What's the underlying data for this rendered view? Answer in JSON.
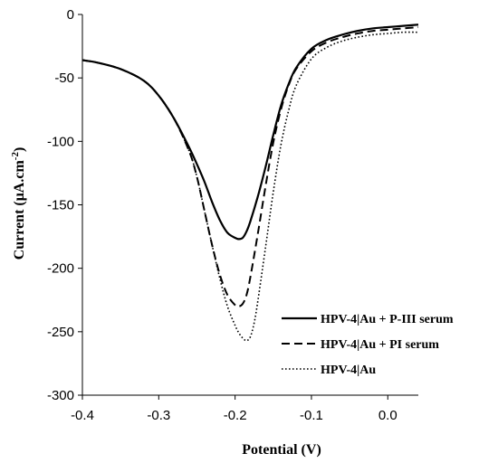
{
  "chart_data": {
    "type": "line",
    "xlabel": "Potential (V)",
    "ylabel_main": "Current (μA.cm",
    "ylabel_sup": "-2",
    "ylabel_close": ")",
    "xlim": [
      -0.4,
      0.04
    ],
    "ylim": [
      -300,
      0
    ],
    "x_ticks": [
      -0.4,
      -0.3,
      -0.2,
      -0.1,
      0.0
    ],
    "x_tick_labels": [
      "-0.4",
      "-0.3",
      "-0.2",
      "-0.1",
      "0.0"
    ],
    "y_ticks": [
      0,
      -50,
      -100,
      -150,
      -200,
      -250,
      -300
    ],
    "y_tick_labels": [
      "0",
      "-50",
      "-100",
      "-150",
      "-200",
      "-250",
      "-300"
    ],
    "grid": false,
    "legend_position": "bottom-right",
    "series": [
      {
        "name": "HPV-4|Au + P-III serum",
        "style": "solid",
        "x": [
          -0.4,
          -0.38,
          -0.35,
          -0.32,
          -0.3,
          -0.28,
          -0.26,
          -0.25,
          -0.24,
          -0.23,
          -0.22,
          -0.21,
          -0.2,
          -0.195,
          -0.19,
          -0.185,
          -0.18,
          -0.17,
          -0.16,
          -0.15,
          -0.14,
          -0.13,
          -0.12,
          -0.1,
          -0.08,
          -0.06,
          -0.04,
          -0.02,
          0.0,
          0.02,
          0.04
        ],
        "y": [
          -36,
          -38,
          -43,
          -52,
          -64,
          -82,
          -105,
          -118,
          -132,
          -148,
          -162,
          -172,
          -176,
          -177,
          -176,
          -171,
          -163,
          -143,
          -120,
          -95,
          -72,
          -55,
          -42,
          -27,
          -20,
          -16,
          -13,
          -11,
          -10,
          -9,
          -8
        ]
      },
      {
        "name": "HPV-4|Au + PI serum",
        "style": "dashed",
        "x": [
          -0.4,
          -0.38,
          -0.35,
          -0.32,
          -0.3,
          -0.28,
          -0.26,
          -0.25,
          -0.24,
          -0.23,
          -0.22,
          -0.21,
          -0.2,
          -0.195,
          -0.19,
          -0.185,
          -0.18,
          -0.17,
          -0.16,
          -0.15,
          -0.14,
          -0.13,
          -0.12,
          -0.1,
          -0.08,
          -0.06,
          -0.04,
          -0.02,
          0.0,
          0.02,
          0.04
        ],
        "y": [
          -36,
          -38,
          -43,
          -52,
          -64,
          -82,
          -108,
          -128,
          -155,
          -182,
          -205,
          -221,
          -229,
          -230,
          -228,
          -221,
          -207,
          -172,
          -135,
          -101,
          -75,
          -56,
          -43,
          -29,
          -22,
          -18,
          -15,
          -13,
          -12,
          -11,
          -10
        ]
      },
      {
        "name": "HPV-4|Au",
        "style": "dotted",
        "x": [
          -0.4,
          -0.38,
          -0.35,
          -0.32,
          -0.3,
          -0.28,
          -0.26,
          -0.25,
          -0.24,
          -0.23,
          -0.22,
          -0.21,
          -0.2,
          -0.195,
          -0.19,
          -0.185,
          -0.18,
          -0.175,
          -0.17,
          -0.16,
          -0.15,
          -0.14,
          -0.13,
          -0.12,
          -0.1,
          -0.08,
          -0.06,
          -0.04,
          -0.02,
          0.0,
          0.02,
          0.04
        ],
        "y": [
          -36,
          -38,
          -43,
          -52,
          -64,
          -82,
          -108,
          -128,
          -155,
          -182,
          -208,
          -230,
          -245,
          -251,
          -255,
          -257,
          -254,
          -243,
          -225,
          -183,
          -140,
          -103,
          -76,
          -56,
          -35,
          -26,
          -21,
          -18,
          -16,
          -15,
          -14,
          -14
        ]
      }
    ]
  }
}
